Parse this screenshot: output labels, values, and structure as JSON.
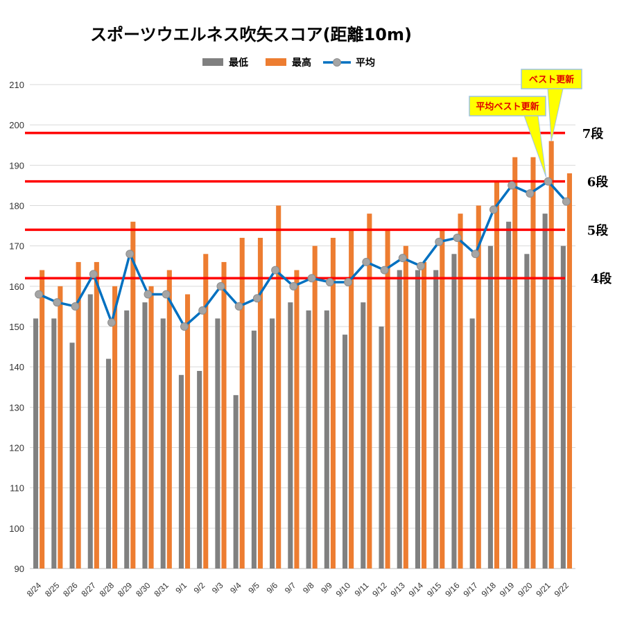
{
  "chart_data": {
    "type": "bar",
    "title": "スポーツウエルネス吹矢スコア(距離10m)",
    "categories": [
      "8/24",
      "8/25",
      "8/26",
      "8/27",
      "8/28",
      "8/29",
      "8/30",
      "8/31",
      "9/1",
      "9/2",
      "9/3",
      "9/4",
      "9/5",
      "9/6",
      "9/7",
      "9/8",
      "9/9",
      "9/10",
      "9/11",
      "9/12",
      "9/13",
      "9/14",
      "9/15",
      "9/16",
      "9/17",
      "9/18",
      "9/19",
      "9/20",
      "9/21",
      "9/22"
    ],
    "series": [
      {
        "name": "最低",
        "kind": "bar",
        "color": "#808080",
        "values": [
          152,
          152,
          146,
          158,
          142,
          154,
          156,
          152,
          138,
          139,
          152,
          133,
          149,
          152,
          156,
          154,
          154,
          148,
          156,
          150,
          164,
          164,
          164,
          168,
          152,
          170,
          176,
          168,
          178,
          170
        ]
      },
      {
        "name": "最高",
        "kind": "bar",
        "color": "#ED7D31",
        "values": [
          164,
          160,
          166,
          166,
          160,
          176,
          160,
          164,
          158,
          168,
          166,
          172,
          172,
          180,
          164,
          170,
          172,
          174,
          178,
          174,
          170,
          166,
          174,
          178,
          180,
          186,
          192,
          192,
          196,
          188
        ]
      },
      {
        "name": "平均",
        "kind": "line",
        "color": "#0070C0",
        "marker_color": "#A5A5A5",
        "values": [
          158,
          156,
          155,
          163,
          151,
          168,
          158,
          158,
          150,
          154,
          160,
          155,
          157,
          164,
          160,
          162,
          161,
          161,
          166,
          164,
          167,
          165,
          171,
          172,
          168,
          179,
          185,
          183,
          186,
          181
        ]
      }
    ],
    "ylim": [
      90,
      210
    ],
    "yticks": [
      90,
      100,
      110,
      120,
      130,
      140,
      150,
      160,
      170,
      180,
      190,
      200,
      210
    ],
    "grid": true,
    "legend_position": "top",
    "reference_lines": [
      {
        "label": "4段",
        "value": 162,
        "color": "#FF0000"
      },
      {
        "label": "5段",
        "value": 174,
        "color": "#FF0000"
      },
      {
        "label": "6段",
        "value": 186,
        "color": "#FF0000"
      },
      {
        "label": "7段",
        "value": 198,
        "color": "#FF0000"
      }
    ],
    "annotations": [
      {
        "text": "平均ベスト更新",
        "category": "9/21",
        "series": "平均"
      },
      {
        "text": "ベスト更新",
        "category": "9/21",
        "series": "最高"
      }
    ]
  }
}
